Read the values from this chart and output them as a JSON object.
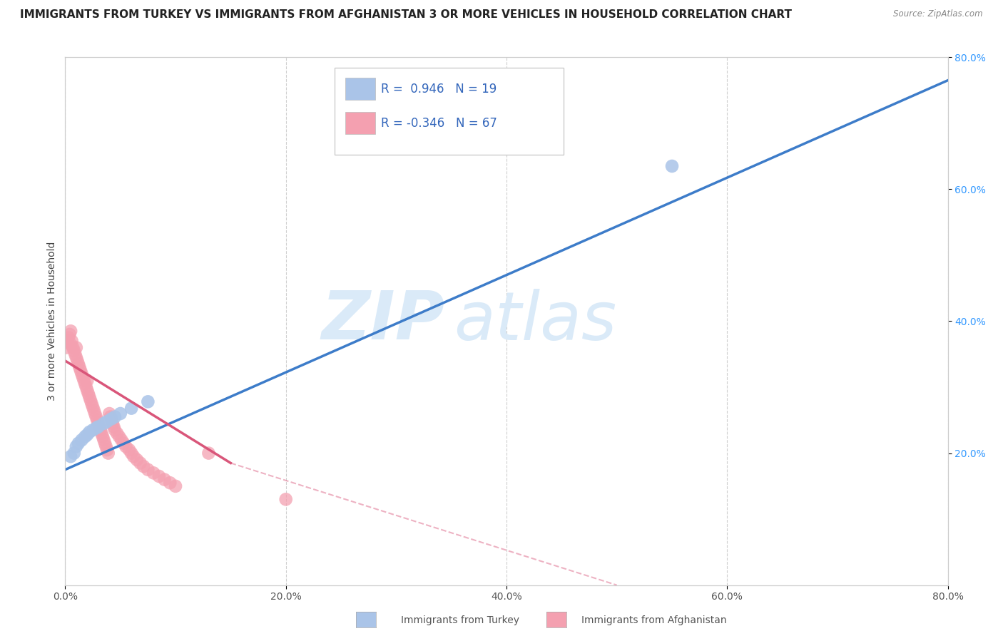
{
  "title": "IMMIGRANTS FROM TURKEY VS IMMIGRANTS FROM AFGHANISTAN 3 OR MORE VEHICLES IN HOUSEHOLD CORRELATION CHART",
  "source": "Source: ZipAtlas.com",
  "ylabel": "3 or more Vehicles in Household",
  "xlabel_turkey": "Immigrants from Turkey",
  "xlabel_afghanistan": "Immigrants from Afghanistan",
  "xlim": [
    0.0,
    0.8
  ],
  "ylim": [
    0.0,
    0.8
  ],
  "xticks": [
    0.0,
    0.2,
    0.4,
    0.6,
    0.8
  ],
  "yticks_right": [
    0.2,
    0.4,
    0.6,
    0.8
  ],
  "R_turkey": 0.946,
  "N_turkey": 19,
  "R_afghanistan": -0.346,
  "N_afghanistan": 67,
  "color_turkey": "#aac4e8",
  "color_afghanistan": "#f4a0b0",
  "line_color_turkey": "#3d7cc9",
  "line_color_afghanistan": "#d9567a",
  "background_color": "#ffffff",
  "grid_color": "#bbbbbb",
  "watermark_color": "#daeaf8",
  "title_fontsize": 11,
  "axis_label_fontsize": 10,
  "tick_fontsize": 10,
  "turkey_x": [
    0.005,
    0.008,
    0.01,
    0.012,
    0.015,
    0.018,
    0.02,
    0.022,
    0.025,
    0.028,
    0.03,
    0.035,
    0.038,
    0.042,
    0.045,
    0.05,
    0.06,
    0.075,
    0.55
  ],
  "turkey_y": [
    0.195,
    0.2,
    0.21,
    0.215,
    0.22,
    0.225,
    0.228,
    0.232,
    0.235,
    0.238,
    0.24,
    0.245,
    0.248,
    0.252,
    0.255,
    0.26,
    0.268,
    0.278,
    0.635
  ],
  "afghanistan_x": [
    0.001,
    0.002,
    0.003,
    0.004,
    0.005,
    0.005,
    0.006,
    0.007,
    0.008,
    0.009,
    0.01,
    0.01,
    0.011,
    0.012,
    0.013,
    0.014,
    0.015,
    0.016,
    0.017,
    0.018,
    0.019,
    0.02,
    0.02,
    0.021,
    0.022,
    0.023,
    0.024,
    0.025,
    0.026,
    0.027,
    0.028,
    0.029,
    0.03,
    0.031,
    0.032,
    0.033,
    0.034,
    0.035,
    0.036,
    0.037,
    0.038,
    0.039,
    0.04,
    0.041,
    0.042,
    0.043,
    0.044,
    0.045,
    0.047,
    0.049,
    0.051,
    0.053,
    0.055,
    0.058,
    0.06,
    0.062,
    0.065,
    0.068,
    0.071,
    0.075,
    0.08,
    0.085,
    0.09,
    0.095,
    0.1,
    0.13,
    0.2
  ],
  "afghanistan_y": [
    0.36,
    0.37,
    0.375,
    0.38,
    0.365,
    0.385,
    0.37,
    0.36,
    0.355,
    0.35,
    0.345,
    0.36,
    0.34,
    0.335,
    0.33,
    0.325,
    0.32,
    0.315,
    0.31,
    0.305,
    0.3,
    0.295,
    0.31,
    0.29,
    0.285,
    0.28,
    0.275,
    0.27,
    0.265,
    0.26,
    0.255,
    0.25,
    0.245,
    0.24,
    0.235,
    0.23,
    0.225,
    0.22,
    0.215,
    0.21,
    0.205,
    0.2,
    0.26,
    0.255,
    0.25,
    0.245,
    0.24,
    0.235,
    0.23,
    0.225,
    0.22,
    0.215,
    0.21,
    0.205,
    0.2,
    0.195,
    0.19,
    0.185,
    0.18,
    0.175,
    0.17,
    0.165,
    0.16,
    0.155,
    0.15,
    0.2,
    0.13
  ],
  "turkey_line_x0": 0.0,
  "turkey_line_x1": 0.8,
  "turkey_line_y0": 0.175,
  "turkey_line_y1": 0.765,
  "afg_line_x0": 0.0,
  "afg_line_x1": 0.15,
  "afg_line_y0": 0.34,
  "afg_line_y1": 0.185,
  "afg_line_dash_x0": 0.15,
  "afg_line_dash_x1": 0.5,
  "afg_line_dash_y0": 0.185,
  "afg_line_dash_y1": 0.0
}
